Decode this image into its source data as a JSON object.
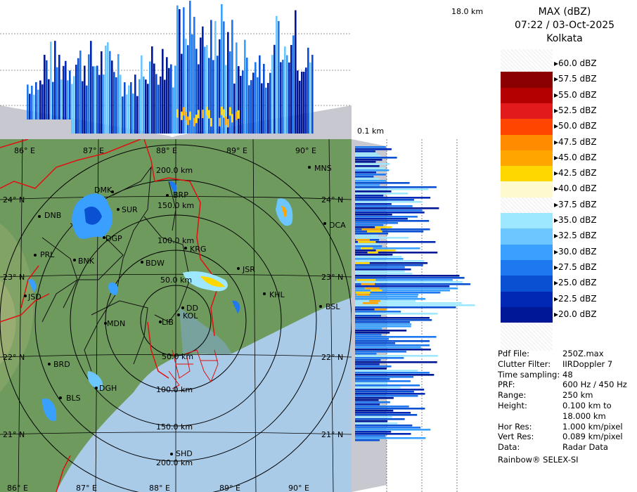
{
  "header": {
    "product": "MAX (dBZ)",
    "datetime": "07:22 / 03-Oct-2025",
    "station": "Kolkata"
  },
  "top_panel": {
    "height_label": "18.0 km"
  },
  "side_panel": {
    "height_label": "0.1 km"
  },
  "legend": {
    "items": [
      {
        "label": "60.0 dBZ",
        "color": "#ffffff"
      },
      {
        "label": "57.5 dBZ",
        "color": "#8b0000"
      },
      {
        "label": "55.0 dBZ",
        "color": "#b40000"
      },
      {
        "label": "52.5 dBZ",
        "color": "#e31a1c"
      },
      {
        "label": "50.0 dBZ",
        "color": "#ff4500"
      },
      {
        "label": "47.5 dBZ",
        "color": "#ff8c00"
      },
      {
        "label": "45.0 dBZ",
        "color": "#ffa500"
      },
      {
        "label": "42.5 dBZ",
        "color": "#ffd700"
      },
      {
        "label": "40.0 dBZ",
        "color": "#fffacd"
      },
      {
        "label": "37.5 dBZ",
        "color": "#ffffff"
      },
      {
        "label": "35.0 dBZ",
        "color": "#9ee8ff"
      },
      {
        "label": "32.5 dBZ",
        "color": "#6cc6ff"
      },
      {
        "label": "30.0 dBZ",
        "color": "#3aa0ff"
      },
      {
        "label": "27.5 dBZ",
        "color": "#1e78f0"
      },
      {
        "label": "25.0 dBZ",
        "color": "#0a50d2"
      },
      {
        "label": "22.5 dBZ",
        "color": "#0028b4"
      },
      {
        "label": "20.0 dBZ",
        "color": "#001896"
      }
    ]
  },
  "info": [
    {
      "key": "Pdf File:",
      "value": "250Z.max"
    },
    {
      "key": "Clutter Filter:",
      "value": "IIRDoppler 7"
    },
    {
      "key": "Time sampling:",
      "value": "48"
    },
    {
      "key": "PRF:",
      "value": "600 Hz / 450 Hz"
    },
    {
      "key": "Range:",
      "value": "250 km"
    },
    {
      "key": "Height:",
      "value": "0.100 km to"
    },
    {
      "key": "",
      "value": "18.000 km"
    },
    {
      "key": "Hor Res:",
      "value": "1.000 km/pixel"
    },
    {
      "key": "Vert Res:",
      "value": "0.089 km/pixel"
    },
    {
      "key": "Data:",
      "value": "Radar Data"
    }
  ],
  "footer": {
    "brand": "Rainbow® SELEX-SI"
  },
  "map": {
    "lon_labels": [
      "86° E",
      "87° E",
      "88° E",
      "89° E",
      "90° E"
    ],
    "lat_labels": [
      "24° N",
      "23° N",
      "22° N",
      "21° N"
    ],
    "range_labels": [
      "50.0 km",
      "100.0 km",
      "150.0 km",
      "200.0 km"
    ],
    "cities": [
      "DMK",
      "BRP",
      "MNS",
      "DNB",
      "SUR",
      "DCA",
      "DGP",
      "KRG",
      "PRL",
      "BNK",
      "BDW",
      "JSR",
      "KHL",
      "JSD",
      "DD",
      "KOL",
      "BSL",
      "MDN",
      "LIB",
      "BRD",
      "DGH",
      "BLS",
      "SHD"
    ]
  },
  "colors": {
    "land": "#6f9a5e",
    "sea": "#a9cbe8",
    "border_red": "#e01010",
    "district_black": "#111111",
    "panel_gray": "#c8c8d0"
  }
}
